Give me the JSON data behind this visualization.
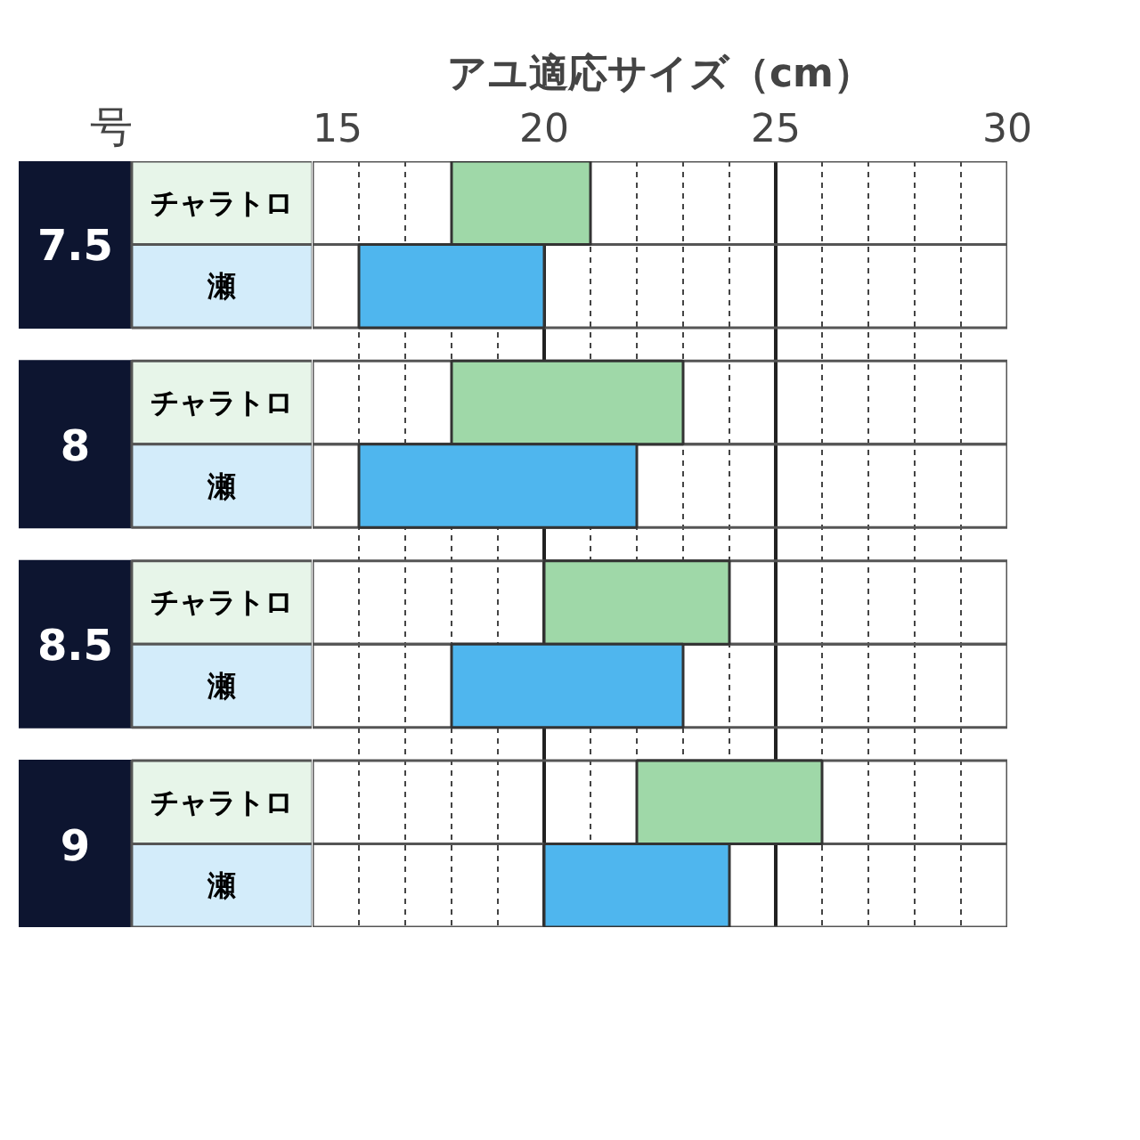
{
  "chart_data": {
    "type": "bar",
    "orientation": "horizontal",
    "title": "アユ適応サイズ（cm）",
    "categories": [
      "チャラトロ",
      "瀬",
      "チャラトロ",
      "瀬",
      "チャラトロ",
      "瀬",
      "チャラトロ",
      "瀬"
    ],
    "base": [
      18,
      16,
      18,
      16,
      20,
      18,
      22,
      20
    ],
    "values": [
      3,
      4,
      5,
      6,
      4,
      5,
      4,
      4
    ],
    "colors": [
      "#9fd8a8",
      "#4fb6ee",
      "#9fd8a8",
      "#4fb6ee",
      "#9fd8a8",
      "#4fb6ee",
      "#9fd8a8",
      "#4fb6ee"
    ],
    "xlim": [
      15,
      30
    ],
    "xticks": [
      15,
      20,
      25,
      30
    ],
    "grid": "x",
    "annotations": [
      "号",
      "7.5",
      "8",
      "8.5",
      "9"
    ]
  }
}
